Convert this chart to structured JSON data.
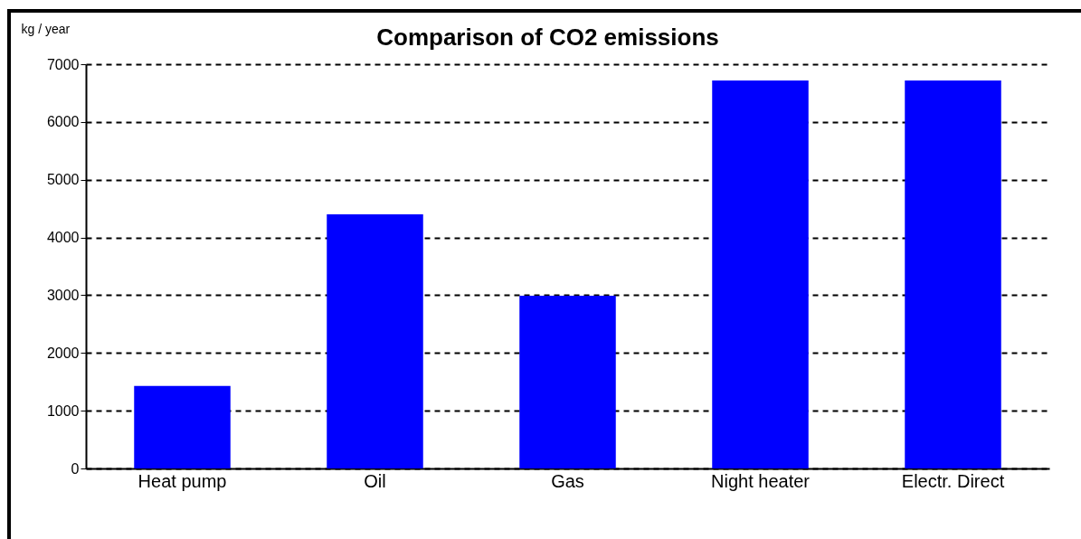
{
  "chart_data": {
    "type": "bar",
    "title": "Comparison of CO2 emissions",
    "ylabel": "kg / year",
    "categories": [
      "Heat pump",
      "Oil",
      "Gas",
      "Night heater",
      "Electr. Direct"
    ],
    "values": [
      1430,
      4400,
      2990,
      6720,
      6720
    ],
    "color": "#0000ff",
    "ylim": [
      0,
      7000
    ],
    "yticks": [
      0,
      1000,
      2000,
      3000,
      4000,
      5000,
      6000,
      7000
    ],
    "grid": "y"
  }
}
